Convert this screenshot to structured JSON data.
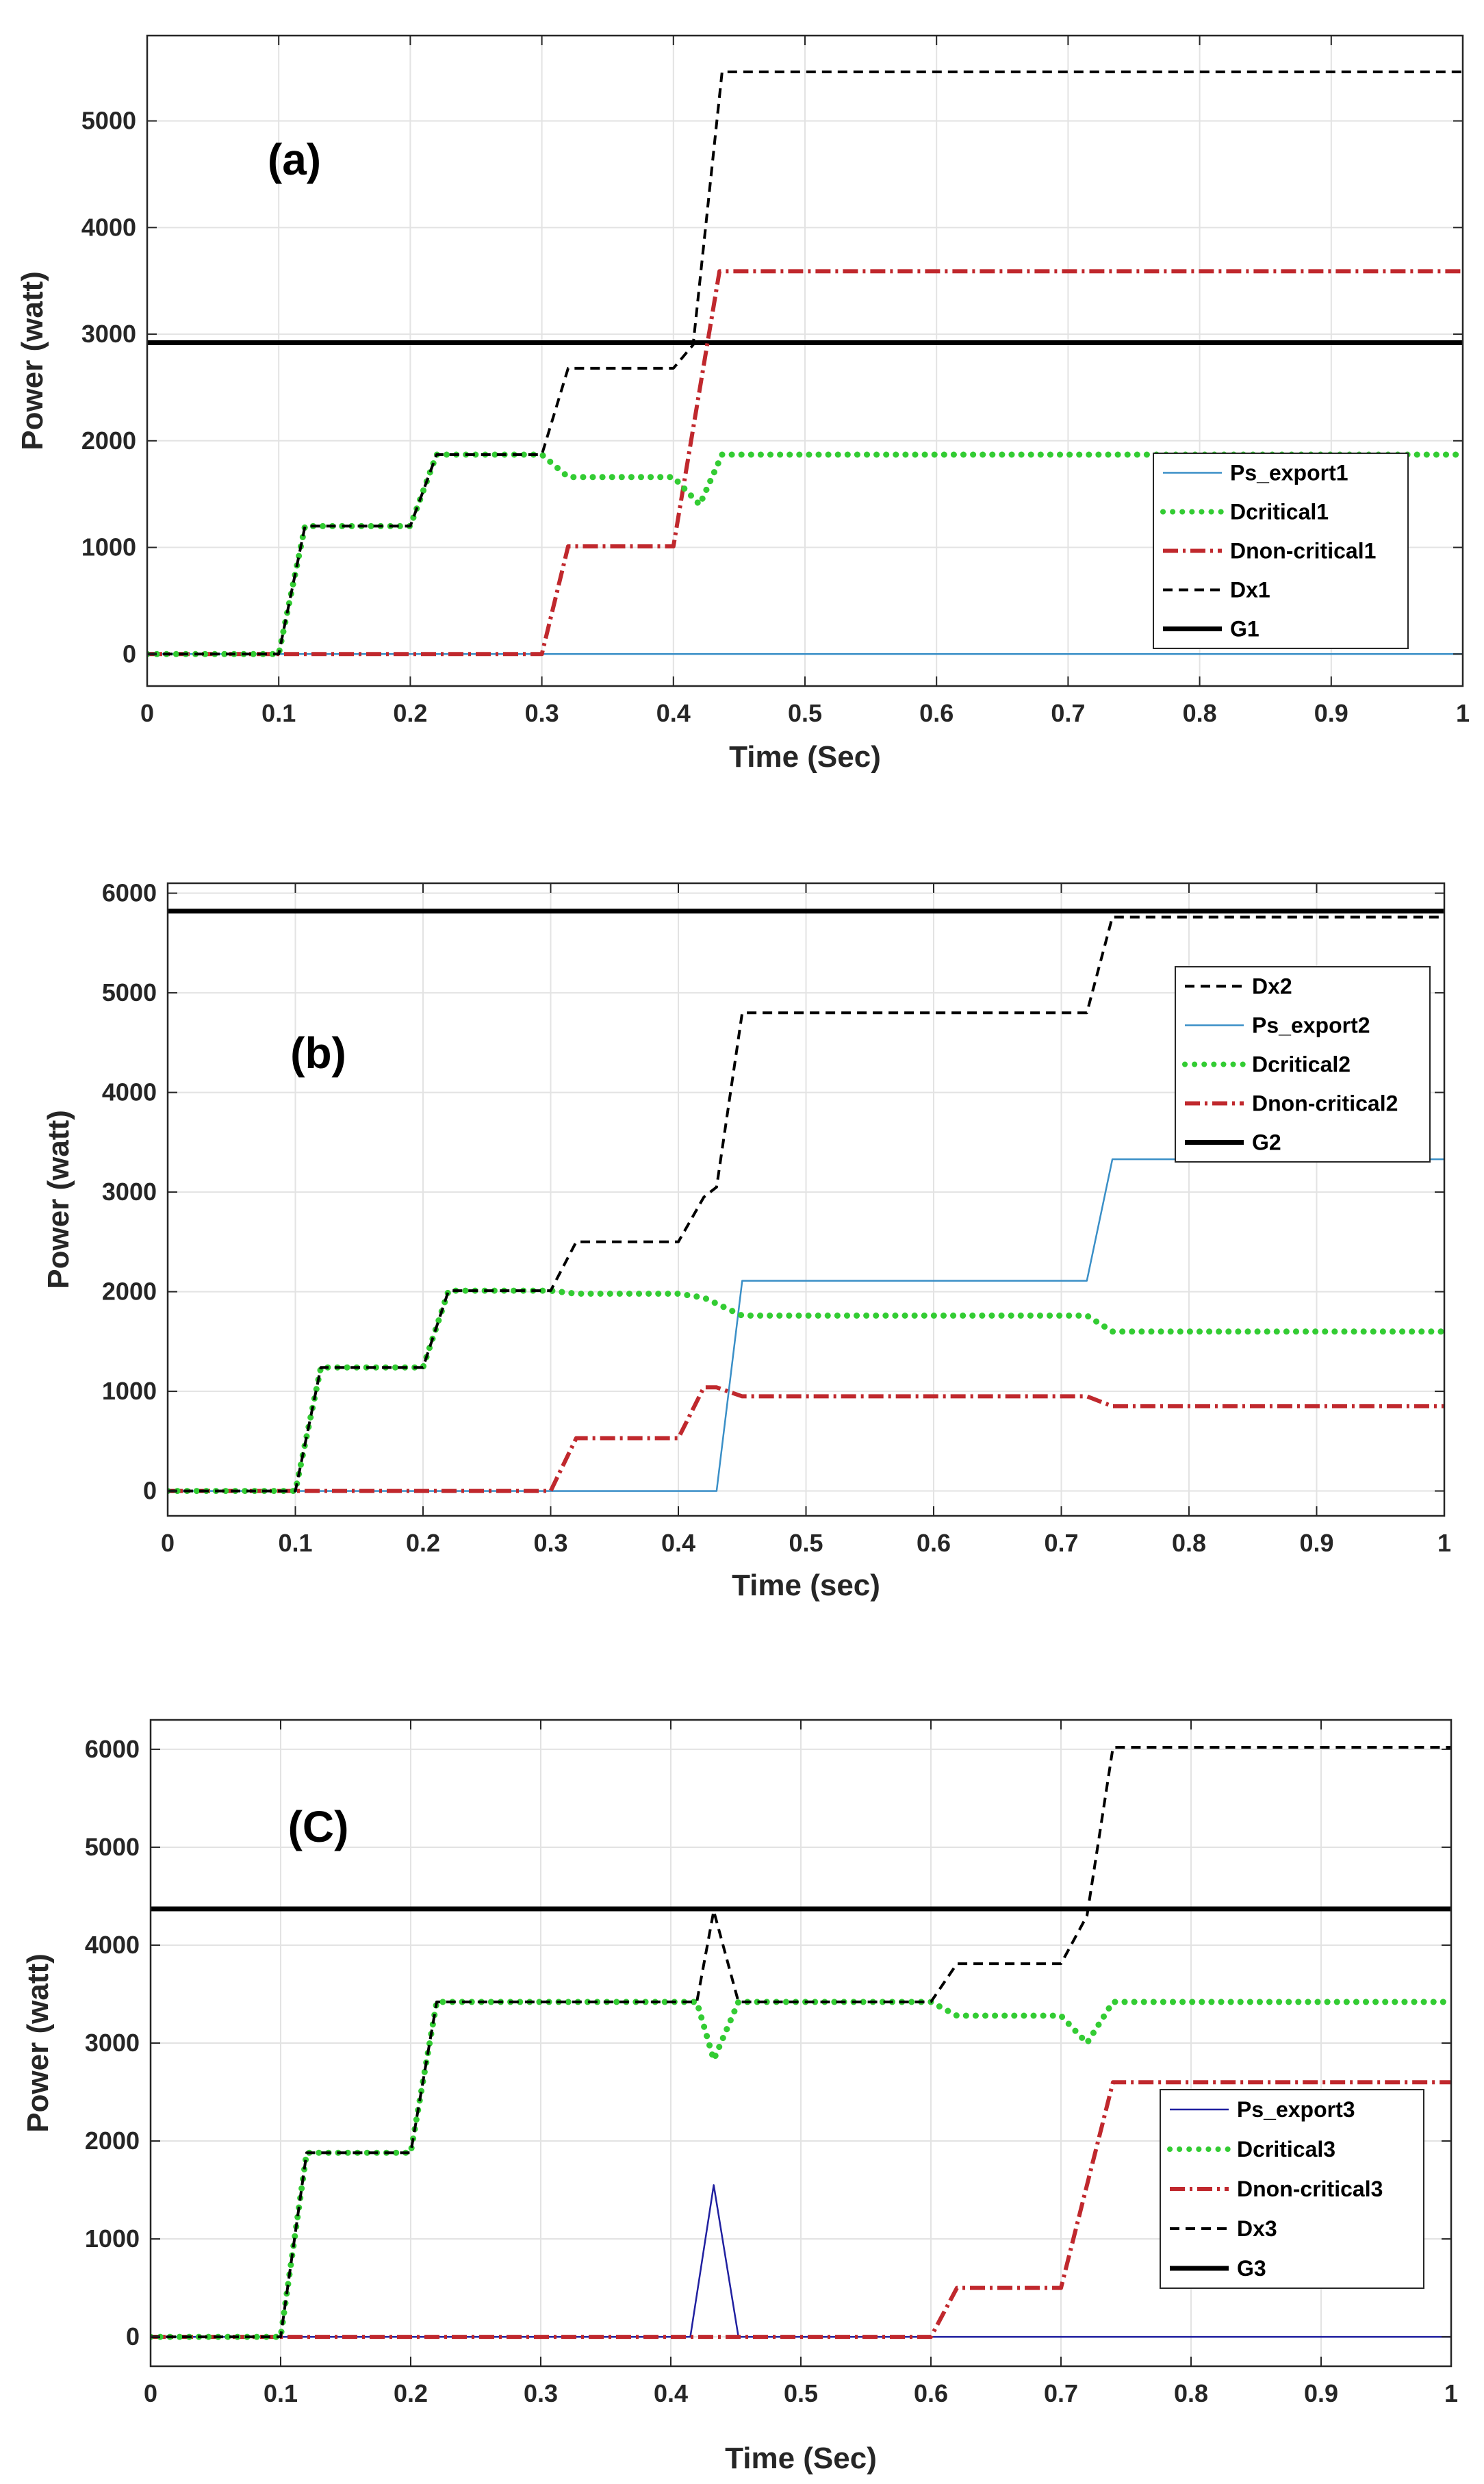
{
  "chart_data": [
    {
      "type": "line",
      "panel_label": "(a)",
      "xlabel": "Time (Sec)",
      "ylabel": "Power (watt)",
      "xlim": [
        0,
        1
      ],
      "ylim": [
        -300,
        5800
      ],
      "xticks": [
        0,
        0.1,
        0.2,
        0.3,
        0.4,
        0.5,
        0.6,
        0.7,
        0.8,
        0.9,
        1
      ],
      "yticks": [
        0,
        1000,
        2000,
        3000,
        4000,
        5000
      ],
      "xtick_labels": [
        "0",
        "0.1",
        "0.2",
        "0.3",
        "0.4",
        "0.5",
        "0.6",
        "0.7",
        "0.8",
        "0.9",
        "1"
      ],
      "ytick_labels": [
        "0",
        "1000",
        "2000",
        "3000",
        "4000",
        "5000"
      ],
      "grid": true,
      "legend_position": "right-lower",
      "series": [
        {
          "name": "Ps_export1",
          "style": "thin",
          "color": "#3a8fc7",
          "x": [
            0,
            1
          ],
          "y": [
            0,
            0
          ]
        },
        {
          "name": "Dcritical1",
          "style": "dotted",
          "color": "#33cc33",
          "x": [
            0,
            0.1,
            0.12,
            0.2,
            0.22,
            0.3,
            0.32,
            0.4,
            0.42,
            0.437,
            1
          ],
          "y": [
            0,
            0,
            1200,
            1200,
            1870,
            1870,
            1660,
            1660,
            1400,
            1870,
            1870
          ]
        },
        {
          "name": "Dnon-critical1",
          "style": "dashdot",
          "color": "#c0282d",
          "x": [
            0,
            0.3,
            0.32,
            0.4,
            0.435,
            1
          ],
          "y": [
            0,
            0,
            1010,
            1010,
            3590,
            3590
          ]
        },
        {
          "name": "Dx1",
          "style": "dashed",
          "color": "#000000",
          "x": [
            0,
            0.1,
            0.12,
            0.2,
            0.22,
            0.3,
            0.32,
            0.4,
            0.415,
            0.437,
            1
          ],
          "y": [
            0,
            0,
            1200,
            1200,
            1870,
            1870,
            2680,
            2680,
            2900,
            5460,
            5460
          ]
        },
        {
          "name": "G1",
          "style": "thick",
          "color": "#000000",
          "x": [
            0,
            1
          ],
          "y": [
            2920,
            2920
          ]
        }
      ]
    },
    {
      "type": "line",
      "panel_label": "(b)",
      "xlabel": "Time (sec)",
      "ylabel": "Power (watt)",
      "xlim": [
        0,
        1
      ],
      "ylim": [
        -250,
        6100
      ],
      "xticks": [
        0,
        0.1,
        0.2,
        0.3,
        0.4,
        0.5,
        0.6,
        0.7,
        0.8,
        0.9,
        1
      ],
      "yticks": [
        0,
        1000,
        2000,
        3000,
        4000,
        5000,
        6000
      ],
      "xtick_labels": [
        "0",
        "0.1",
        "0.2",
        "0.3",
        "0.4",
        "0.5",
        "0.6",
        "0.7",
        "0.8",
        "0.9",
        "1"
      ],
      "ytick_labels": [
        "0",
        "1000",
        "2000",
        "3000",
        "4000",
        "5000",
        "6000"
      ],
      "grid": true,
      "legend_position": "right-upper",
      "series": [
        {
          "name": "Dx2",
          "style": "dashed",
          "color": "#000000",
          "x": [
            0,
            0.1,
            0.12,
            0.2,
            0.22,
            0.3,
            0.32,
            0.4,
            0.42,
            0.43,
            0.45,
            0.72,
            0.74,
            1
          ],
          "y": [
            0,
            0,
            1240,
            1240,
            2010,
            2010,
            2500,
            2500,
            2950,
            3050,
            4800,
            4800,
            5760,
            5760
          ]
        },
        {
          "name": "Ps_export2",
          "style": "thin",
          "color": "#3a8fc7",
          "x": [
            0,
            0.43,
            0.45,
            0.72,
            0.74,
            1
          ],
          "y": [
            0,
            0,
            2110,
            2110,
            3330,
            3330
          ]
        },
        {
          "name": "Dcritical2",
          "style": "dotted",
          "color": "#33cc33",
          "x": [
            0,
            0.1,
            0.12,
            0.2,
            0.22,
            0.3,
            0.32,
            0.4,
            0.42,
            0.45,
            0.72,
            0.74,
            1
          ],
          "y": [
            0,
            0,
            1240,
            1240,
            2010,
            2010,
            1980,
            1980,
            1940,
            1760,
            1760,
            1600,
            1600
          ]
        },
        {
          "name": "Dnon-critical2",
          "style": "dashdot",
          "color": "#c0282d",
          "x": [
            0,
            0.3,
            0.32,
            0.4,
            0.42,
            0.43,
            0.45,
            0.72,
            0.74,
            1
          ],
          "y": [
            0,
            0,
            530,
            530,
            1040,
            1040,
            950,
            950,
            850,
            850
          ]
        },
        {
          "name": "G2",
          "style": "thick",
          "color": "#000000",
          "x": [
            0,
            1
          ],
          "y": [
            5820,
            5820
          ]
        }
      ]
    },
    {
      "type": "line",
      "panel_label": "(C)",
      "xlabel": "Time (Sec)",
      "ylabel": "Power (watt)",
      "xlim": [
        0,
        1
      ],
      "ylim": [
        -300,
        6300
      ],
      "xticks": [
        0,
        0.1,
        0.2,
        0.3,
        0.4,
        0.5,
        0.6,
        0.7,
        0.8,
        0.9,
        1
      ],
      "yticks": [
        0,
        1000,
        2000,
        3000,
        4000,
        5000,
        6000
      ],
      "xtick_labels": [
        "0",
        "0.1",
        "0.2",
        "0.3",
        "0.4",
        "0.5",
        "0.6",
        "0.7",
        "0.8",
        "0.9",
        "1"
      ],
      "ytick_labels": [
        "0",
        "1000",
        "2000",
        "3000",
        "4000",
        "5000",
        "6000"
      ],
      "grid": true,
      "legend_position": "right-lower",
      "series": [
        {
          "name": "Ps_export3",
          "style": "thin",
          "color": "#2020a0",
          "x": [
            0,
            0.415,
            0.433,
            0.452,
            1
          ],
          "y": [
            0,
            0,
            1550,
            0,
            0
          ]
        },
        {
          "name": "Dcritical3",
          "style": "dotted",
          "color": "#33cc33",
          "x": [
            0,
            0.1,
            0.12,
            0.2,
            0.22,
            0.42,
            0.433,
            0.452,
            0.6,
            0.62,
            0.7,
            0.72,
            0.74,
            1
          ],
          "y": [
            0,
            0,
            1880,
            1880,
            3420,
            3420,
            2830,
            3420,
            3420,
            3280,
            3280,
            3000,
            3420,
            3420
          ]
        },
        {
          "name": "Dnon-critical3",
          "style": "dashdot",
          "color": "#c0282d",
          "x": [
            0,
            0.6,
            0.62,
            0.7,
            0.74,
            1
          ],
          "y": [
            0,
            0,
            500,
            500,
            2600,
            2600
          ]
        },
        {
          "name": "Dx3",
          "style": "dashed",
          "color": "#000000",
          "x": [
            0,
            0.1,
            0.12,
            0.2,
            0.22,
            0.42,
            0.433,
            0.452,
            0.6,
            0.62,
            0.7,
            0.72,
            0.74,
            1
          ],
          "y": [
            0,
            0,
            1880,
            1880,
            3420,
            3420,
            4350,
            3420,
            3420,
            3810,
            3810,
            4300,
            6020,
            6020
          ]
        },
        {
          "name": "G3",
          "style": "thick",
          "color": "#000000",
          "x": [
            0,
            1
          ],
          "y": [
            4370,
            4370
          ]
        }
      ]
    }
  ]
}
